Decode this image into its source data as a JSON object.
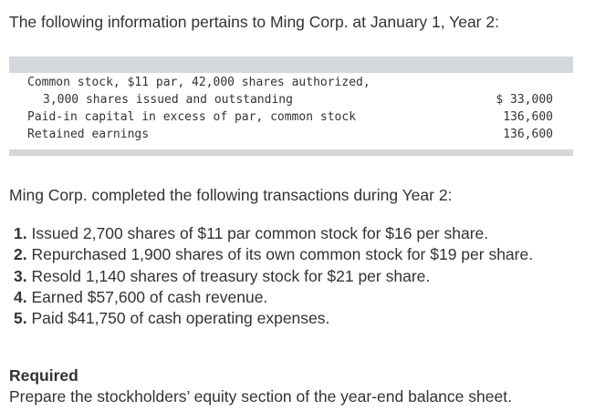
{
  "intro": "The following information pertains to Ming Corp. at January 1, Year 2:",
  "table": {
    "rows": [
      {
        "label": "Common stock, $11 par, 42,000 shares authorized,",
        "value": ""
      },
      {
        "label": "3,000 shares issued and outstanding",
        "value": "$ 33,000"
      },
      {
        "label": "Paid-in capital in excess of par, common stock",
        "value": "136,600"
      },
      {
        "label": "Retained earnings",
        "value": "136,600"
      }
    ]
  },
  "paragraph": "Ming Corp. completed the following transactions during Year 2:",
  "transactions": [
    {
      "num": "1.",
      "text": "Issued 2,700 shares of $11 par common stock for $16 per share."
    },
    {
      "num": "2.",
      "text": "Repurchased 1,900 shares of its own common stock for $19 per share."
    },
    {
      "num": "3.",
      "text": "Resold 1,140 shares of treasury stock for $21 per share."
    },
    {
      "num": "4.",
      "text": "Earned $57,600 of cash revenue."
    },
    {
      "num": "5.",
      "text": "Paid $41,750 of cash operating expenses."
    }
  ],
  "required": {
    "title": "Required",
    "text": "Prepare the stockholders’ equity section of the year-end balance sheet."
  }
}
